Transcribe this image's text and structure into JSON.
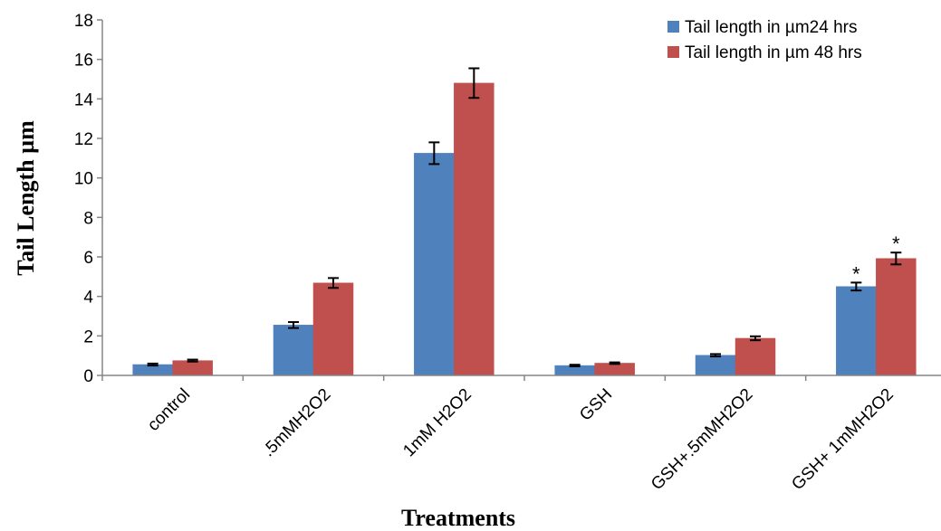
{
  "chart_data": {
    "type": "bar",
    "title": "",
    "xlabel": "Treatments",
    "ylabel": "Tail Length µm",
    "ylim": [
      0,
      18
    ],
    "yticks": [
      0,
      2,
      4,
      6,
      8,
      10,
      12,
      14,
      16,
      18
    ],
    "grid": false,
    "legend_position": "top-right",
    "categories": [
      "control",
      ".5mMH2O2",
      "1mM H2O2",
      "GSH",
      "GSH+.5mMH2O2",
      "GSH+ 1mMH2O2"
    ],
    "series": [
      {
        "name": "Tail length in µm24 hrs",
        "color": "#4F81BD",
        "values": [
          0.55,
          2.55,
          11.25,
          0.5,
          1.02,
          4.5
        ],
        "errors": [
          0.05,
          0.15,
          0.55,
          0.04,
          0.06,
          0.2
        ],
        "annotations": [
          "",
          "",
          "",
          "",
          "",
          "*"
        ]
      },
      {
        "name": "Tail length in µm 48 hrs",
        "color": "#C0504D",
        "values": [
          0.75,
          4.68,
          14.8,
          0.62,
          1.88,
          5.92
        ],
        "errors": [
          0.05,
          0.25,
          0.75,
          0.04,
          0.1,
          0.3
        ],
        "annotations": [
          "",
          "",
          "",
          "",
          "",
          "*"
        ]
      }
    ]
  }
}
